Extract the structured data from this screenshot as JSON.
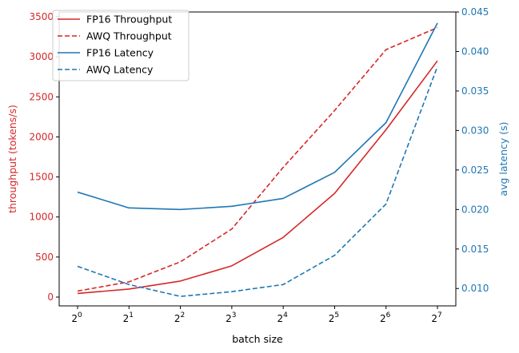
{
  "colors": {
    "throughput": "#d62728",
    "latency": "#1f77b4",
    "axis": "#000000"
  },
  "chart_data": {
    "type": "line",
    "title": "",
    "xlabel": "batch size",
    "ylabel_left": "throughput (tokens/s)",
    "ylabel_right": "avg latency (s)",
    "x_scale": "log2",
    "x": [
      1,
      2,
      4,
      8,
      16,
      32,
      64,
      128
    ],
    "x_tick_labels": [
      {
        "base": "2",
        "exp": "0"
      },
      {
        "base": "2",
        "exp": "1"
      },
      {
        "base": "2",
        "exp": "2"
      },
      {
        "base": "2",
        "exp": "3"
      },
      {
        "base": "2",
        "exp": "4"
      },
      {
        "base": "2",
        "exp": "5"
      },
      {
        "base": "2",
        "exp": "6"
      },
      {
        "base": "2",
        "exp": "7"
      }
    ],
    "ylim_left": [
      -110,
      3560
    ],
    "y_ticks_left": [
      0,
      500,
      1000,
      1500,
      2000,
      2500,
      3000,
      3500
    ],
    "ylim_right": [
      0.0078,
      0.045
    ],
    "y_ticks_right": [
      0.01,
      0.015,
      0.02,
      0.025,
      0.03,
      0.035,
      0.04,
      0.045
    ],
    "y_tick_labels_right": [
      "0.010",
      "0.015",
      "0.020",
      "0.025",
      "0.030",
      "0.035",
      "0.040",
      "0.045"
    ],
    "grid": false,
    "legend_position": "top-left",
    "series": [
      {
        "name": "FP16 Throughput",
        "axis": "left",
        "style": "solid",
        "color": "#d62728",
        "values": [
          45,
          100,
          200,
          390,
          745,
          1295,
          2090,
          2950
        ]
      },
      {
        "name": "AWQ Throughput",
        "axis": "left",
        "style": "dashed",
        "color": "#d62728",
        "values": [
          75,
          190,
          440,
          850,
          1620,
          2330,
          3090,
          3365
        ]
      },
      {
        "name": "FP16 Latency",
        "axis": "right",
        "style": "solid",
        "color": "#1f77b4",
        "values": [
          0.0222,
          0.0202,
          0.02,
          0.0204,
          0.0214,
          0.0247,
          0.031,
          0.0436
        ]
      },
      {
        "name": "AWQ Latency",
        "axis": "right",
        "style": "dashed",
        "color": "#1f77b4",
        "values": [
          0.0128,
          0.0105,
          0.009,
          0.0096,
          0.0105,
          0.0142,
          0.0207,
          0.0381
        ]
      }
    ]
  }
}
